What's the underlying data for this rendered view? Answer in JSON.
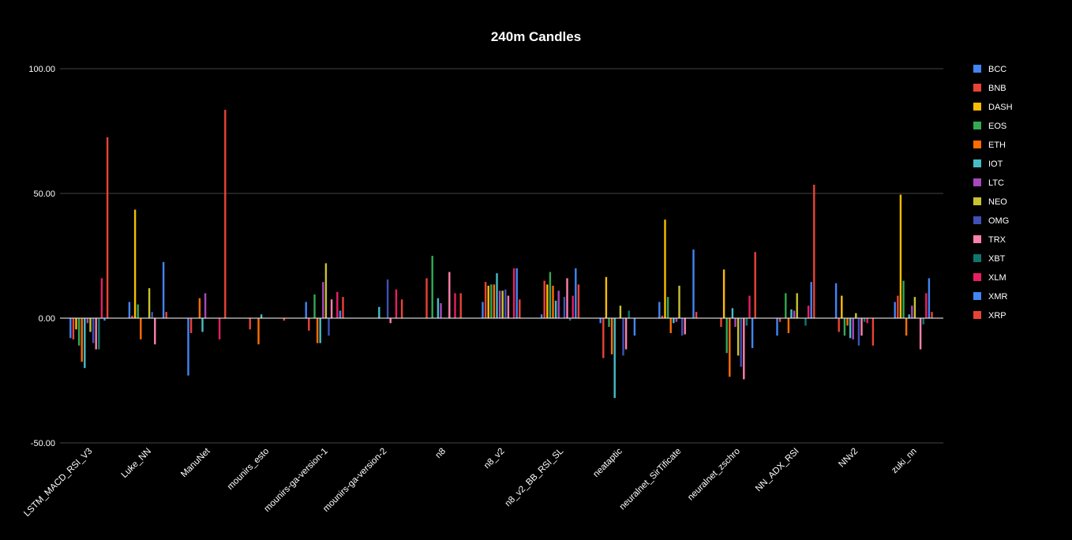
{
  "chart_data": {
    "type": "bar",
    "title": "240m Candles",
    "xlabel": "",
    "ylabel": "",
    "ylim": [
      -50,
      100
    ],
    "yticks": [
      -50,
      0,
      50,
      100
    ],
    "ytick_labels": [
      "-50.00",
      "0.00",
      "50.00",
      "100.00"
    ],
    "grid": true,
    "legend_position": "right",
    "categories": [
      "LSTM_MACD_RSI_V3",
      "Luke_NN",
      "ManuNet",
      "mounirs_esto",
      "mounirs-ga-version-1",
      "mounirs-ga-version-2",
      "n8",
      "n8_v2",
      "n8_v2_BB_RSI_SL",
      "neataptic",
      "neuralnet_SirTificate",
      "neuralnet_zschro",
      "NN_ADX_RSI",
      "NNv2",
      "zuki_nn"
    ],
    "series": [
      {
        "name": "BCC",
        "color": "#4285f4",
        "values": [
          -8,
          6.5,
          -23,
          0,
          6.5,
          0,
          0,
          6.5,
          1.5,
          -2,
          6.5,
          0,
          -7,
          14,
          6.5
        ]
      },
      {
        "name": "BNB",
        "color": "#ea4335",
        "values": [
          -8.5,
          1,
          -6,
          -4.5,
          -5,
          0,
          16,
          14.5,
          15,
          -16,
          1,
          -3.5,
          -1.5,
          -5.5,
          9
        ]
      },
      {
        "name": "DASH",
        "color": "#fbbc04",
        "values": [
          -4.5,
          43.5,
          0,
          0,
          0,
          0,
          0,
          13,
          13.5,
          16.5,
          39.5,
          19.5,
          0,
          9,
          49.5
        ]
      },
      {
        "name": "EOS",
        "color": "#34a853",
        "values": [
          -11,
          5.5,
          0,
          0,
          9.5,
          0,
          25,
          13.5,
          18.5,
          -3.5,
          8.5,
          -14,
          10,
          -7,
          15
        ]
      },
      {
        "name": "ETH",
        "color": "#ff6d01",
        "values": [
          -17.5,
          -8.5,
          8,
          -10.5,
          -10,
          0,
          0,
          13.5,
          13,
          -14.5,
          -6,
          -23.5,
          -6,
          -3,
          -7
        ]
      },
      {
        "name": "IOT",
        "color": "#46bdc6",
        "values": [
          -20,
          0,
          -5.5,
          1.5,
          -10,
          4.5,
          8,
          18,
          7,
          -32,
          -2,
          4,
          3.5,
          -8,
          1.5
        ]
      },
      {
        "name": "LTC",
        "color": "#ab47bc",
        "values": [
          -2,
          0,
          10,
          0,
          14.5,
          0,
          6,
          11,
          11,
          0,
          -1.5,
          -3.5,
          3,
          -8.5,
          5
        ]
      },
      {
        "name": "NEO",
        "color": "#c9c332",
        "values": [
          -5.5,
          12,
          0,
          0,
          22,
          0,
          0,
          11,
          0,
          5,
          13,
          -15,
          10,
          2,
          8.5
        ]
      },
      {
        "name": "OMG",
        "color": "#3f51b5",
        "values": [
          -10,
          2.5,
          0,
          0,
          -7,
          15.5,
          0,
          11.5,
          8.5,
          -15,
          -7,
          -19.5,
          0,
          -11,
          0
        ]
      },
      {
        "name": "TRX",
        "color": "#ff80ab",
        "values": [
          -12.5,
          -10.5,
          0,
          0,
          7.5,
          -2,
          18.5,
          9,
          16,
          -12.5,
          -6.5,
          -24.5,
          0,
          -7,
          -12.5
        ]
      },
      {
        "name": "XBT",
        "color": "#0f766e",
        "values": [
          -12.5,
          0,
          0,
          0,
          0,
          0,
          0,
          0,
          -1,
          3,
          0,
          -3,
          -3,
          -1.5,
          -2.5
        ]
      },
      {
        "name": "XLM",
        "color": "#e91e63",
        "values": [
          16,
          0,
          -8.5,
          0,
          10.5,
          11.5,
          10,
          20,
          9,
          0,
          0,
          9,
          5,
          -2,
          10
        ]
      },
      {
        "name": "XMR",
        "color": "#4285f4",
        "values": [
          -1,
          22.5,
          0,
          0,
          3,
          0,
          0,
          20,
          20,
          -7,
          27.5,
          -12,
          14.5,
          0,
          16
        ]
      },
      {
        "name": "XRP",
        "color": "#ea4335",
        "values": [
          72.5,
          2.5,
          83.5,
          -1,
          8.5,
          7.5,
          10,
          7.5,
          13.5,
          0,
          2.5,
          26.5,
          53.5,
          -11,
          2.5
        ]
      }
    ]
  }
}
